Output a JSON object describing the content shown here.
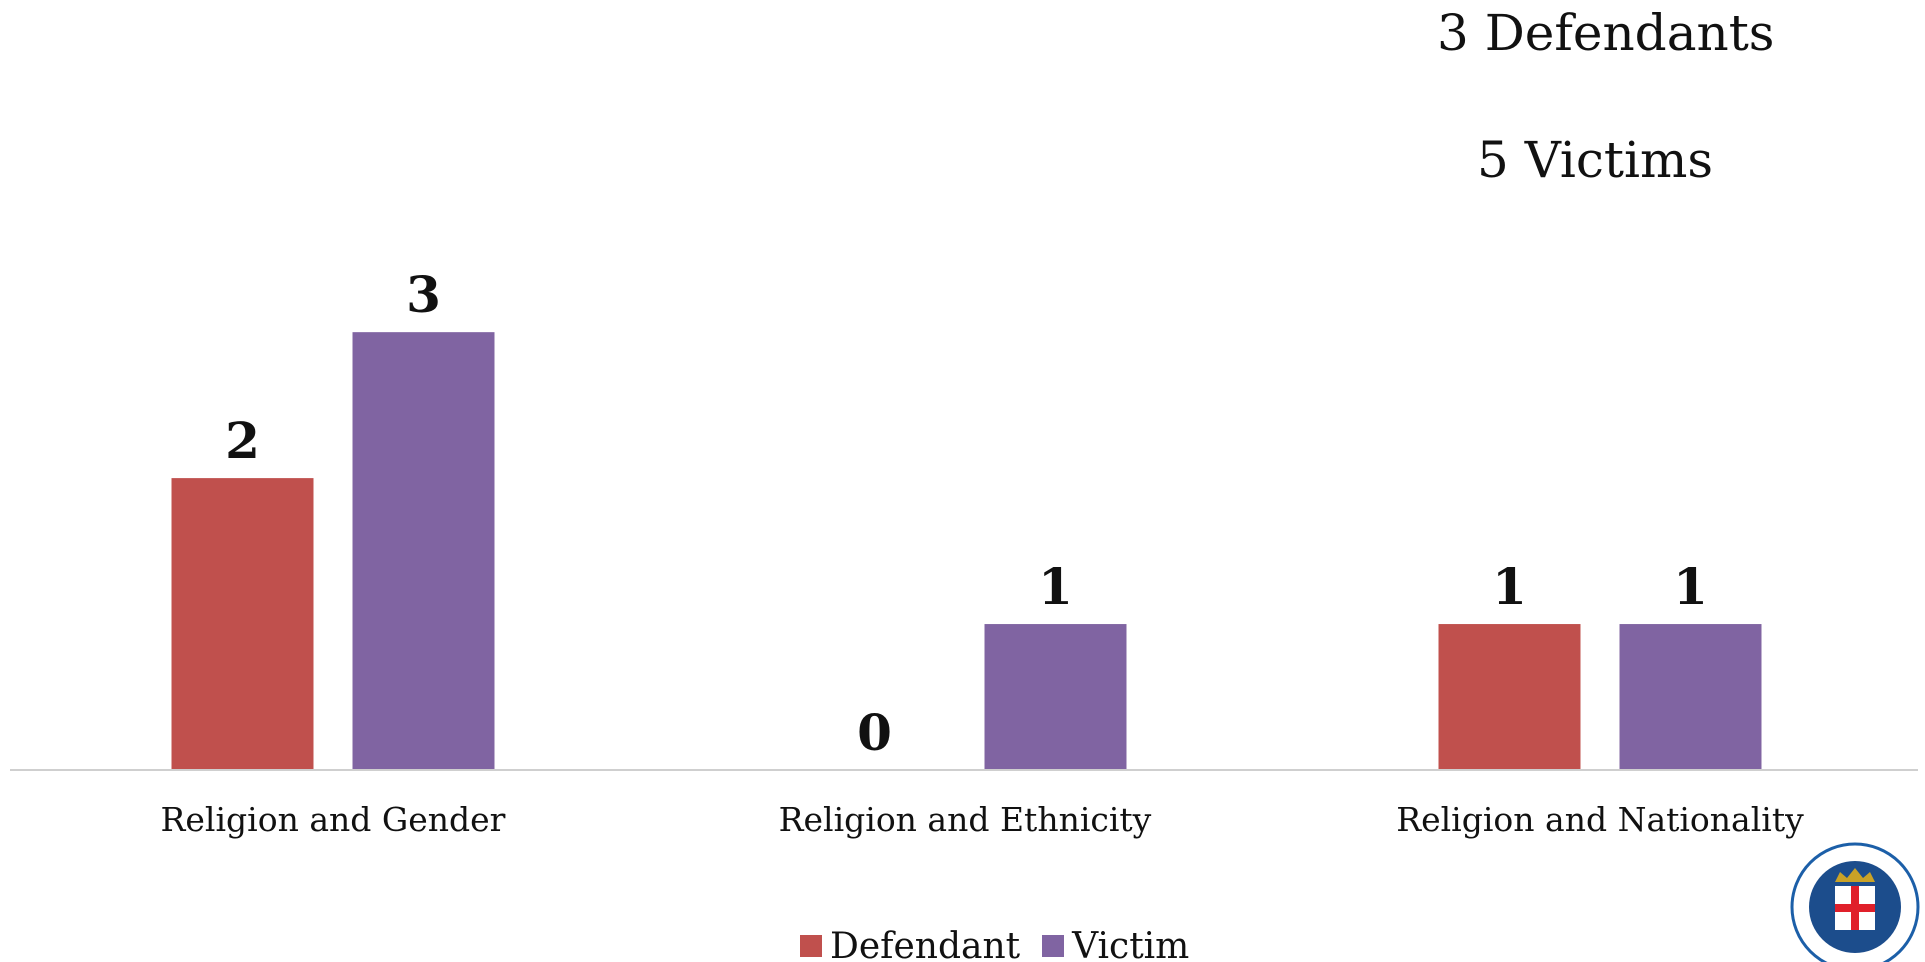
{
  "chart_data": {
    "type": "bar",
    "title": "",
    "xlabel": "",
    "ylabel": "",
    "categories": [
      "Religion and Gender",
      "Religion and Ethnicity",
      "Religion and Nationality"
    ],
    "series": [
      {
        "name": "Defendant",
        "color": "#C0504D",
        "values": [
          2,
          0,
          1
        ]
      },
      {
        "name": "Victim",
        "color": "#8064A2",
        "values": [
          3,
          1,
          1
        ]
      }
    ],
    "ylim": [
      0,
      4.44
    ],
    "grid": false,
    "data_labels": true,
    "legend_position": "bottom-center"
  },
  "summary": {
    "defendants": "3 Defendants",
    "victims": "5 Victims"
  },
  "seal": {
    "icon": "prosecutor-office-seal-icon",
    "colors": {
      "ring": "#1C5FA8",
      "inner": "#1C4D8C",
      "cross": "#E0202A",
      "crown": "#C9A227"
    }
  }
}
